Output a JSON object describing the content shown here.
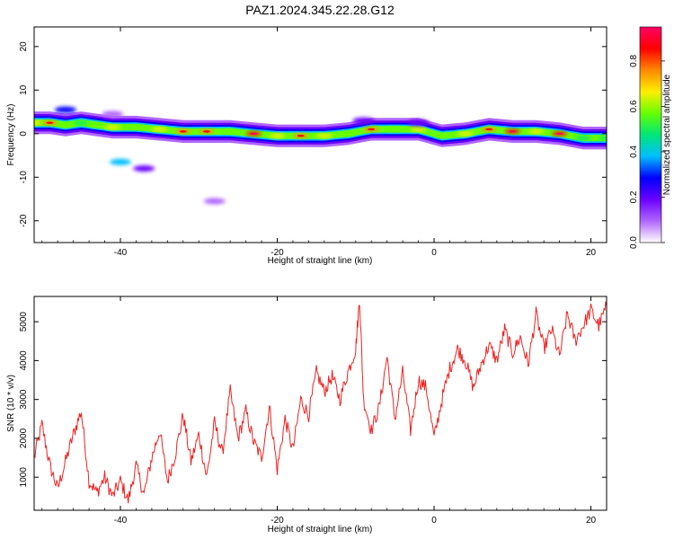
{
  "figure": {
    "title": "PAZ1.2024.345.22.28.G12"
  },
  "chart_data": [
    {
      "type": "heatmap",
      "xlabel": "Height of straight line (km)",
      "ylabel": "Frequency (Hz)",
      "xlim": [
        -51,
        22
      ],
      "ylim": [
        -25,
        24.5
      ],
      "x_ticks": [
        -40,
        -20,
        0,
        20
      ],
      "y_ticks": [
        -20,
        -10,
        0,
        10,
        20
      ],
      "grid": false,
      "colorbar": {
        "label": "Normalized spectral amplitude",
        "range": [
          0.0,
          0.95
        ],
        "ticks": [
          0.0,
          0.2,
          0.4,
          0.6,
          0.8
        ],
        "tick_labels": [
          "0.0",
          "0.2",
          "0.4",
          "0.6",
          "0.8"
        ],
        "colormap": [
          "#ffffff",
          "#b066ff",
          "#6a00ff",
          "#0000ff",
          "#00bfff",
          "#00e676",
          "#66ff00",
          "#ffee00",
          "#ff8800",
          "#ff0000",
          "#ff0066"
        ]
      },
      "ridge": {
        "x": [
          -51,
          -49,
          -47,
          -45,
          -43,
          -41,
          -38,
          -35,
          -32,
          -29,
          -26,
          -23,
          -20,
          -17,
          -14,
          -11,
          -8,
          -5,
          -2,
          1,
          4,
          7,
          10,
          13,
          16,
          19,
          22
        ],
        "frequency": [
          2.5,
          2.5,
          2.0,
          2.5,
          2.0,
          1.5,
          1.5,
          1.0,
          0.5,
          0.5,
          0.5,
          0.0,
          -0.5,
          -0.5,
          -0.5,
          0.0,
          1.0,
          1.0,
          1.0,
          -0.5,
          0.0,
          1.0,
          0.5,
          0.5,
          0.0,
          -1.0,
          -1.0
        ],
        "amplitude": [
          0.7,
          0.75,
          0.6,
          0.5,
          0.6,
          0.65,
          0.6,
          0.65,
          0.8,
          0.75,
          0.6,
          0.85,
          0.65,
          0.8,
          0.7,
          0.55,
          0.75,
          0.6,
          0.7,
          0.6,
          0.7,
          0.8,
          0.85,
          0.7,
          0.85,
          0.5,
          0.5
        ]
      },
      "blobs": [
        {
          "x": -47,
          "frequency": 5.5,
          "amplitude": 0.25
        },
        {
          "x": -41,
          "frequency": 4.5,
          "amplitude": 0.1
        },
        {
          "x": -40,
          "frequency": -6.5,
          "amplitude": 0.35
        },
        {
          "x": -37,
          "frequency": -8.0,
          "amplitude": 0.2
        },
        {
          "x": -28,
          "frequency": -15.5,
          "amplitude": 0.1
        },
        {
          "x": -9,
          "frequency": 3.0,
          "amplitude": 0.2
        },
        {
          "x": -2,
          "frequency": 2.5,
          "amplitude": 0.15
        }
      ]
    },
    {
      "type": "line",
      "xlabel": "Height of straight line (km)",
      "ylabel": "SNR (10 * v/v)",
      "xlim": [
        -51,
        22
      ],
      "ylim": [
        150,
        5650
      ],
      "x_ticks": [
        -40,
        -20,
        0,
        20
      ],
      "y_ticks": [
        1000,
        2000,
        3000,
        4000,
        5000
      ],
      "grid": false,
      "series": [
        {
          "color": "#ee2222",
          "x": [
            -51,
            -50,
            -49,
            -48,
            -47,
            -46,
            -45,
            -44,
            -43,
            -42,
            -41,
            -40,
            -39,
            -38,
            -37,
            -36,
            -35,
            -34,
            -33,
            -32,
            -31,
            -30,
            -29,
            -28,
            -27,
            -26,
            -25,
            -24,
            -23,
            -22,
            -21,
            -20,
            -19,
            -18,
            -17,
            -16,
            -15,
            -14,
            -13,
            -12,
            -11,
            -10,
            -9.5,
            -9,
            -8,
            -7,
            -6,
            -5,
            -4,
            -3,
            -2,
            -1,
            0,
            1,
            2,
            3,
            4,
            5,
            6,
            7,
            8,
            9,
            10,
            11,
            12,
            13,
            14,
            15,
            16,
            17,
            18,
            19,
            20,
            21,
            22
          ],
          "values": [
            1500,
            2350,
            1300,
            700,
            1400,
            2100,
            2700,
            900,
            600,
            1000,
            500,
            900,
            400,
            1300,
            550,
            1500,
            2200,
            900,
            1600,
            2600,
            1400,
            2100,
            1000,
            2400,
            1600,
            3200,
            2000,
            2700,
            1900,
            1500,
            2800,
            1200,
            2500,
            1700,
            3000,
            2600,
            3700,
            3200,
            3600,
            3000,
            3700,
            4300,
            5600,
            3000,
            2200,
            2800,
            4100,
            2500,
            3700,
            2200,
            3500,
            3300,
            2000,
            3000,
            3800,
            4300,
            4000,
            3300,
            3900,
            4400,
            4000,
            4800,
            4200,
            4600,
            3900,
            5200,
            4300,
            4800,
            4100,
            5200,
            4500,
            4900,
            5300,
            4900,
            5400
          ]
        }
      ]
    }
  ]
}
